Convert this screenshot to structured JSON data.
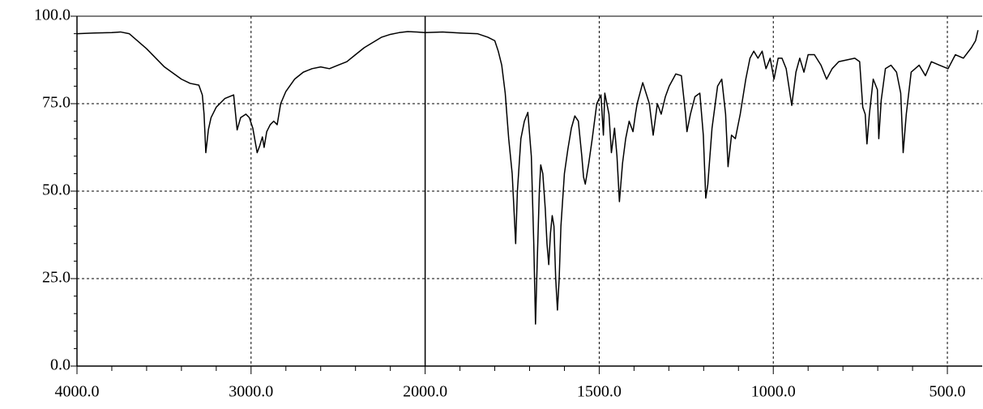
{
  "chart_data": {
    "type": "line",
    "color": "#000000",
    "x": [
      4000,
      3900,
      3800,
      3750,
      3700,
      3600,
      3500,
      3400,
      3350,
      3300,
      3280,
      3270,
      3260,
      3245,
      3230,
      3200,
      3150,
      3100,
      3080,
      3060,
      3030,
      3010,
      2990,
      2965,
      2950,
      2935,
      2925,
      2910,
      2890,
      2870,
      2850,
      2830,
      2800,
      2750,
      2700,
      2650,
      2600,
      2550,
      2500,
      2450,
      2400,
      2350,
      2300,
      2250,
      2200,
      2150,
      2100,
      2050,
      2000,
      1950,
      1900,
      1850,
      1820,
      1800,
      1790,
      1780,
      1770,
      1760,
      1750,
      1745,
      1740,
      1735,
      1725,
      1715,
      1705,
      1695,
      1688,
      1683,
      1678,
      1672,
      1668,
      1662,
      1655,
      1650,
      1645,
      1640,
      1635,
      1630,
      1625,
      1620,
      1615,
      1610,
      1600,
      1590,
      1580,
      1570,
      1560,
      1550,
      1545,
      1540,
      1530,
      1520,
      1507,
      1495,
      1488,
      1484,
      1472,
      1465,
      1456,
      1449,
      1442,
      1433,
      1424,
      1414,
      1403,
      1396,
      1391,
      1375,
      1356,
      1345,
      1333,
      1322,
      1310,
      1299,
      1280,
      1264,
      1252,
      1248,
      1238,
      1225,
      1211,
      1201,
      1194,
      1188,
      1176,
      1160,
      1148,
      1137,
      1130,
      1120,
      1109,
      1095,
      1079,
      1067,
      1056,
      1044,
      1032,
      1021,
      1009,
      998,
      986,
      975,
      963,
      947,
      935,
      924,
      912,
      900,
      882,
      863,
      847,
      831,
      812,
      789,
      766,
      752,
      743,
      736,
      731,
      724,
      713,
      701,
      697,
      690,
      678,
      662,
      646,
      634,
      627,
      618,
      604,
      581,
      563,
      546,
      523,
      498,
      477,
      454,
      431,
      419,
      412
    ],
    "values": [
      95.0,
      95.2,
      95.3,
      95.5,
      95.0,
      90.7,
      85.6,
      82.0,
      80.8,
      80.3,
      77.5,
      72.0,
      61.0,
      67.6,
      71.0,
      74.0,
      76.5,
      77.5,
      67.5,
      71.0,
      72.0,
      71.0,
      68.0,
      61.0,
      63.0,
      65.5,
      62.5,
      67.0,
      69.0,
      70.0,
      69.0,
      75.0,
      78.5,
      82.0,
      84.0,
      85.0,
      85.5,
      85.0,
      86.0,
      87.0,
      89.0,
      91.0,
      92.5,
      94.0,
      94.8,
      95.3,
      95.6,
      95.5,
      95.3,
      95.5,
      95.2,
      95.0,
      94.0,
      93.0,
      90.0,
      86.0,
      78.0,
      65.0,
      55.0,
      45.0,
      35.0,
      50.0,
      65.0,
      70.0,
      72.5,
      60.0,
      35.0,
      12.0,
      30.0,
      50.0,
      57.5,
      55.0,
      45.0,
      35.0,
      29.0,
      38.0,
      43.0,
      40.0,
      25.0,
      16.0,
      25.0,
      40.0,
      55.0,
      62.0,
      68.0,
      71.5,
      70.0,
      60.0,
      54.0,
      52.0,
      58.0,
      65.0,
      75.0,
      77.5,
      66.0,
      78.0,
      72.0,
      61.0,
      68.0,
      60.0,
      47.0,
      58.0,
      65.0,
      70.0,
      67.0,
      72.0,
      75.0,
      81.0,
      75.0,
      66.0,
      75.0,
      72.0,
      77.0,
      80.0,
      83.5,
      83.0,
      72.0,
      67.0,
      72.0,
      77.0,
      78.0,
      66.0,
      48.0,
      52.0,
      68.0,
      80.0,
      82.0,
      72.0,
      57.0,
      66.0,
      65.0,
      72.0,
      82.0,
      88.0,
      90.0,
      88.0,
      90.0,
      85.0,
      88.0,
      82.0,
      88.0,
      88.0,
      85.0,
      74.5,
      84.0,
      88.0,
      84.0,
      89.0,
      89.0,
      86.0,
      82.0,
      85.0,
      87.0,
      87.5,
      88.0,
      87.0,
      74.0,
      72.0,
      63.5,
      72.0,
      82.0,
      79.0,
      65.0,
      76.0,
      85.0,
      86.0,
      84.0,
      78.0,
      61.0,
      72.0,
      84.0,
      86.0,
      83.0,
      87.0,
      86.0,
      85.0,
      89.0,
      88.0,
      91.0,
      93.0,
      96.0
    ],
    "xlim": [
      4000,
      400
    ],
    "x_break": 2000,
    "x_break_ratio": 2,
    "xticks": [
      {
        "value": 4000,
        "label": "4000.0"
      },
      {
        "value": 3000,
        "label": "3000.0"
      },
      {
        "value": 2000,
        "label": "2000.0"
      },
      {
        "value": 1500,
        "label": "1500.0"
      },
      {
        "value": 1000,
        "label": "1000.0"
      },
      {
        "value": 500,
        "label": "500.0"
      }
    ],
    "xminorticks": [
      3800,
      3600,
      3400,
      3200,
      2800,
      2600,
      2400,
      2200,
      1900,
      1800,
      1700,
      1600,
      1400,
      1300,
      1200,
      1100,
      900,
      800,
      700,
      600
    ],
    "ylim": [
      0,
      100
    ],
    "yticks": [
      {
        "value": 0,
        "label": "0.0"
      },
      {
        "value": 25,
        "label": "25.0"
      },
      {
        "value": 50,
        "label": "50.0"
      },
      {
        "value": 75,
        "label": "75.0"
      },
      {
        "value": 100,
        "label": "100.0"
      }
    ],
    "yminorticks": [
      5,
      10,
      15,
      20,
      30,
      35,
      40,
      45,
      55,
      60,
      65,
      70,
      80,
      85,
      90,
      95
    ],
    "grid": true
  }
}
